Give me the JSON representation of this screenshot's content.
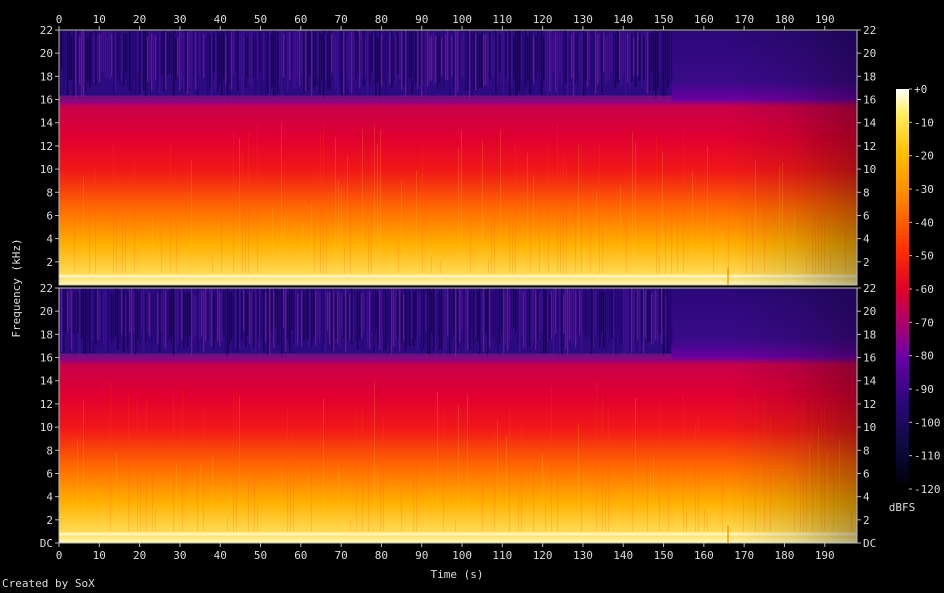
{
  "chart_data": {
    "type": "heatmap",
    "xlabel": "Time (s)",
    "ylabel": "Frequency (kHz)",
    "xlim": [
      0,
      198
    ],
    "x_ticks": [
      0,
      10,
      20,
      30,
      40,
      50,
      60,
      70,
      80,
      90,
      100,
      110,
      120,
      130,
      140,
      150,
      160,
      170,
      180,
      190
    ],
    "ylim_khz": [
      0,
      22
    ],
    "channels": [
      {
        "y_tick_labels": [
          "2",
          "4",
          "6",
          "8",
          "10",
          "12",
          "14",
          "16",
          "18",
          "20",
          "22"
        ]
      },
      {
        "y_tick_labels": [
          "DC",
          "2",
          "4",
          "6",
          "8",
          "10",
          "12",
          "14",
          "16",
          "18",
          "20",
          "22"
        ]
      }
    ],
    "colorbar": {
      "label": "dBFS",
      "range": [
        -120,
        0
      ],
      "tick_labels": [
        "+0",
        "-10",
        "-20",
        "-30",
        "-40",
        "-50",
        "-60",
        "-70",
        "-80",
        "-90",
        "-100",
        "-110",
        "-120"
      ]
    },
    "features": {
      "lowpass_cutoff_khz": 16,
      "lowpass_end_time_s": 152,
      "transition_time_s": 166
    }
  },
  "credit": "Created by SoX"
}
